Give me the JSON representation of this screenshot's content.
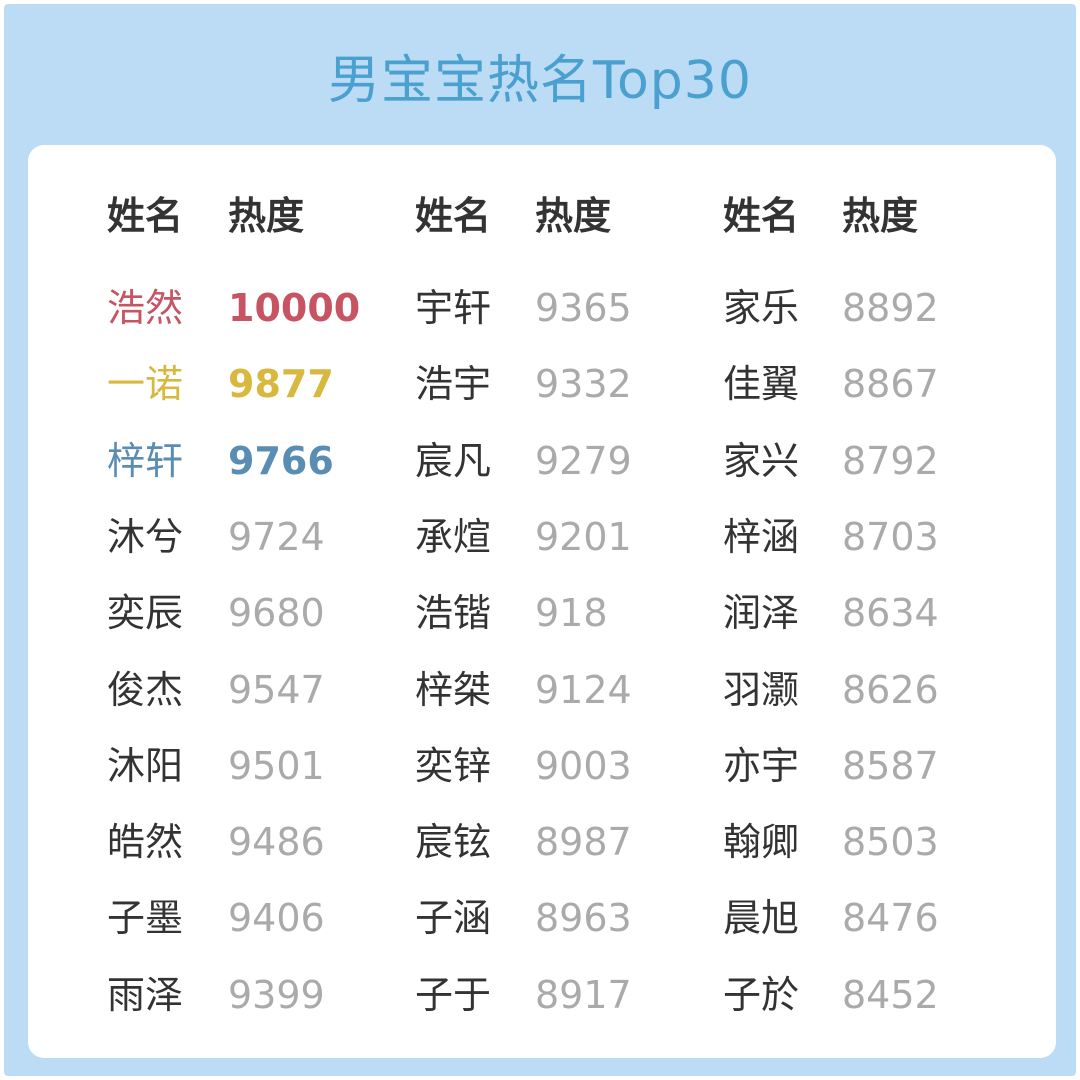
{
  "title": "男宝宝热名Top30",
  "headers": {
    "name": "姓名",
    "score": "热度"
  },
  "colors": {
    "rank1": "#c65462",
    "rank2": "#d8b83e",
    "rank3": "#5a8db3",
    "name": "#333333",
    "score": "#aaaaaa",
    "title": "#4aa0cf",
    "background": "#bcdcf6"
  },
  "columns": [
    {
      "rows": [
        {
          "name": "浩然",
          "score": "10000"
        },
        {
          "name": "一诺",
          "score": "9877"
        },
        {
          "name": "梓轩",
          "score": "9766"
        },
        {
          "name": "沐兮",
          "score": "9724"
        },
        {
          "name": "奕辰",
          "score": "9680"
        },
        {
          "name": "俊杰",
          "score": "9547"
        },
        {
          "name": "沐阳",
          "score": "9501"
        },
        {
          "name": "皓然",
          "score": "9486"
        },
        {
          "name": "子墨",
          "score": "9406"
        },
        {
          "name": "雨泽",
          "score": "9399"
        }
      ]
    },
    {
      "rows": [
        {
          "name": "宇轩",
          "score": "9365"
        },
        {
          "name": "浩宇",
          "score": "9332"
        },
        {
          "name": "宸凡",
          "score": "9279"
        },
        {
          "name": "承煊",
          "score": "9201"
        },
        {
          "name": "浩锴",
          "score": "918"
        },
        {
          "name": "梓桀",
          "score": "9124"
        },
        {
          "name": "奕锌",
          "score": "9003"
        },
        {
          "name": "宸铉",
          "score": "8987"
        },
        {
          "name": "子涵",
          "score": "8963"
        },
        {
          "name": "子于",
          "score": "8917"
        }
      ]
    },
    {
      "rows": [
        {
          "name": "家乐",
          "score": "8892"
        },
        {
          "name": "佳翼",
          "score": "8867"
        },
        {
          "name": "家兴",
          "score": "8792"
        },
        {
          "name": "梓涵",
          "score": "8703"
        },
        {
          "name": "润泽",
          "score": "8634"
        },
        {
          "name": "羽灏",
          "score": "8626"
        },
        {
          "name": "亦宇",
          "score": "8587"
        },
        {
          "name": "翰卿",
          "score": "8503"
        },
        {
          "name": "晨旭",
          "score": "8476"
        },
        {
          "name": "子於",
          "score": "8452"
        }
      ]
    }
  ]
}
